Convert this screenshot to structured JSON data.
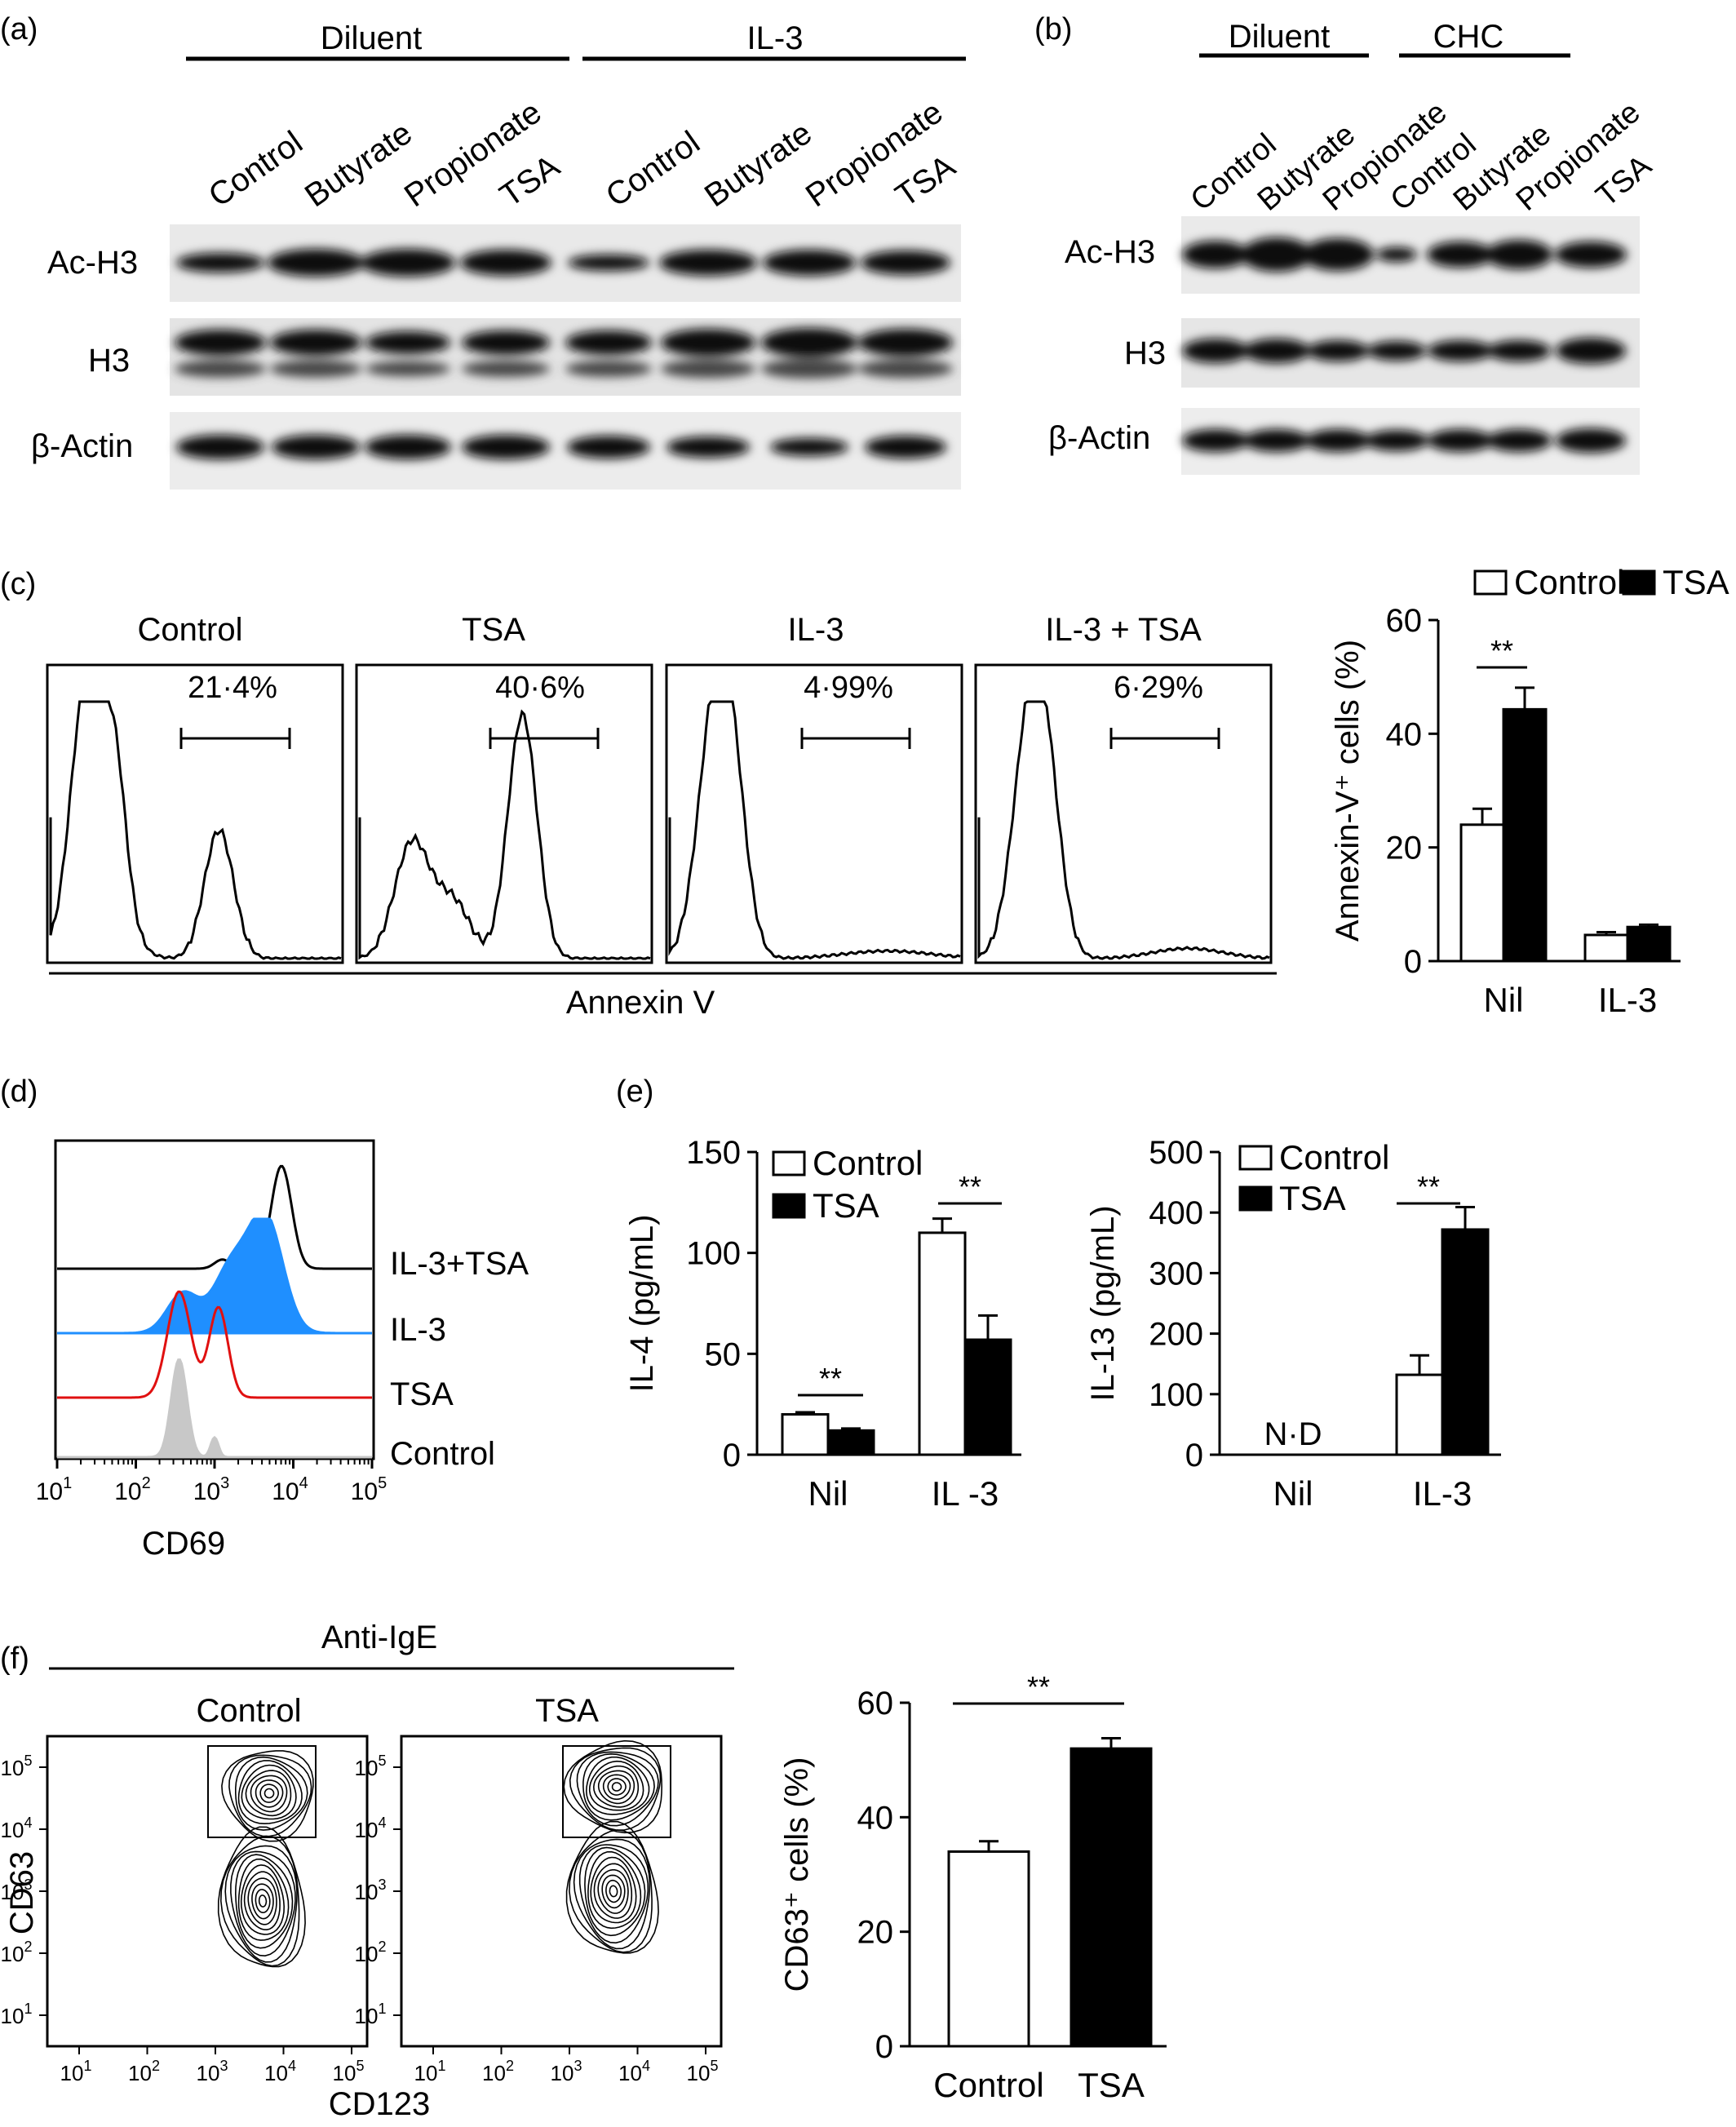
{
  "panel_labels": {
    "a": "(a)",
    "b": "(b)",
    "c": "(c)",
    "d": "(d)",
    "e": "(e)",
    "f": "(f)"
  },
  "blot_a": {
    "groups": [
      "Diluent",
      "IL-3"
    ],
    "lanes": [
      "Control",
      "Butyrate",
      "Propionate",
      "TSA",
      "Control",
      "Butyrate",
      "Propionate",
      "TSA"
    ],
    "rows": [
      "Ac-H3",
      "H3",
      "β-Actin"
    ]
  },
  "blot_b": {
    "groups": [
      "Diluent",
      "CHC"
    ],
    "lanes": [
      "Control",
      "Butyrate",
      "Propionate",
      "Control",
      "Butyrate",
      "Propionate",
      "TSA"
    ],
    "rows": [
      "Ac-H3",
      "H3",
      "β-Actin"
    ]
  },
  "panel_c": {
    "histograms": [
      {
        "title": "Control",
        "gate_label": "21·4%"
      },
      {
        "title": "TSA",
        "gate_label": "40·6%"
      },
      {
        "title": "IL-3",
        "gate_label": "4·99%"
      },
      {
        "title": "IL-3 + TSA",
        "gate_label": "6·29%"
      }
    ],
    "xlabel": "Annexin V"
  },
  "panel_d": {
    "tracks": [
      "IL-3+TSA",
      "IL-3",
      "TSA",
      "Control"
    ],
    "track_colors": [
      "#000000",
      "#1f8fff",
      "#e01010",
      "#c8c8c8"
    ],
    "xlabel": "CD69",
    "xticks": [
      "10",
      "10",
      "10",
      "10",
      "10"
    ],
    "xtick_exps": [
      "1",
      "2",
      "3",
      "4",
      "5"
    ]
  },
  "panel_f_contours": {
    "group_label": "Anti-IgE",
    "panels": [
      "Control",
      "TSA"
    ],
    "xlabel": "CD123",
    "ylabel": "CD63",
    "ticks": [
      "10",
      "10",
      "10",
      "10",
      "10"
    ],
    "tick_exps": [
      "1",
      "2",
      "3",
      "4",
      "5"
    ]
  },
  "chart_data": [
    {
      "type": "bar",
      "panel": "c",
      "categories": [
        "Nil",
        "IL-3"
      ],
      "series": [
        {
          "name": "Control",
          "color": "#ffffff",
          "values": [
            24,
            4.6
          ],
          "errors": [
            2.8,
            0.5
          ]
        },
        {
          "name": "TSA",
          "color": "#000000",
          "values": [
            44.3,
            6.0
          ],
          "errors": [
            3.8,
            0.4
          ]
        }
      ],
      "ylabel": "Annexin-V⁺ cells (%)",
      "yticks": [
        0,
        20,
        40,
        60
      ],
      "ylim": [
        0,
        60
      ],
      "significance": [
        {
          "category": "Nil",
          "label": "**"
        }
      ],
      "legend": "top"
    },
    {
      "type": "bar",
      "panel": "e",
      "categories": [
        "Nil",
        "IL -3"
      ],
      "series": [
        {
          "name": "Control",
          "color": "#ffffff",
          "values": [
            20,
            110
          ],
          "errors": [
            1,
            7
          ]
        },
        {
          "name": "TSA",
          "color": "#000000",
          "values": [
            12,
            57
          ],
          "errors": [
            1,
            12
          ]
        }
      ],
      "ylabel": "IL-4 (pg/mL)",
      "yticks": [
        0,
        50,
        100,
        150
      ],
      "ylim": [
        0,
        150
      ],
      "significance": [
        {
          "category": "Nil",
          "label": "**"
        },
        {
          "category": "IL -3",
          "label": "**"
        }
      ],
      "legend": "top-right"
    },
    {
      "type": "bar",
      "panel": "e",
      "categories": [
        "Nil",
        "IL-3"
      ],
      "series": [
        {
          "name": "Control",
          "color": "#ffffff",
          "values": [
            null,
            132
          ],
          "errors": [
            null,
            32
          ]
        },
        {
          "name": "TSA",
          "color": "#000000",
          "values": [
            null,
            372
          ],
          "errors": [
            null,
            37
          ]
        }
      ],
      "ylabel": "IL-13 (pg/mL)",
      "yticks": [
        0,
        100,
        200,
        300,
        400,
        500
      ],
      "ylim": [
        0,
        500
      ],
      "annotations": [
        "N·D"
      ],
      "significance": [
        {
          "category": "IL-3",
          "label": "**"
        }
      ],
      "legend": "top-left"
    },
    {
      "type": "bar",
      "panel": "f",
      "categories": [
        "Control",
        "TSA"
      ],
      "series": [
        {
          "name": "",
          "values": [
            34,
            52
          ],
          "errors": [
            1.8,
            1.8
          ]
        }
      ],
      "bar_colors": [
        "#ffffff",
        "#000000"
      ],
      "ylabel": "CD63⁺ cells (%)",
      "yticks": [
        0,
        20,
        40,
        60
      ],
      "ylim": [
        0,
        60
      ],
      "significance": [
        {
          "label": "**",
          "between": [
            "Control",
            "TSA"
          ]
        }
      ]
    }
  ]
}
